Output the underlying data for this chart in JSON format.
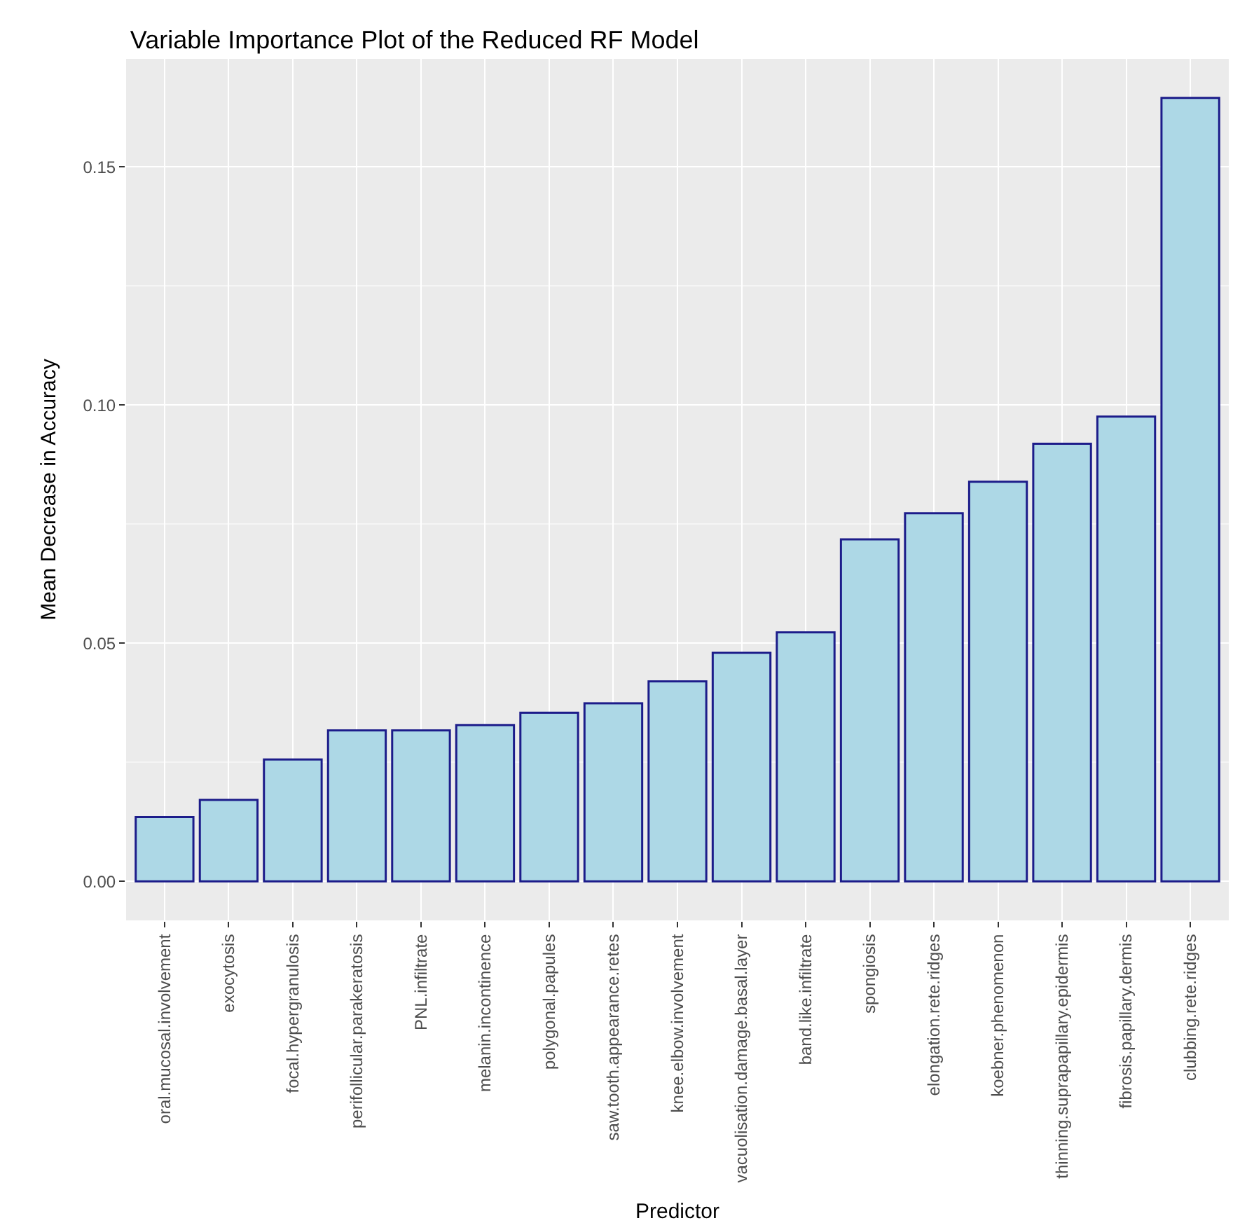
{
  "chart_data": {
    "type": "bar",
    "title": "Variable Importance Plot of the Reduced RF Model",
    "xlabel": "Predictor",
    "ylabel": "Mean Decrease in Accuracy",
    "categories": [
      "oral.mucosal.involvement",
      "exocytosis",
      "focal.hypergranulosis",
      "perifollicular.parakeratosis",
      "PNL.infiltrate",
      "melanin.incontinence",
      "polygonal.papules",
      "saw.tooth.appearance.retes",
      "knee.elbow.involvement",
      "vacuolisation.damage.basal.layer",
      "band.like.infiltrate",
      "spongiosis",
      "elongation.rete.ridges",
      "koebner.phenomenon",
      "thinning.suprapapillary.epidermis",
      "fibrosis.papillary.dermis",
      "clubbing.rete.ridges"
    ],
    "values": [
      0.0135,
      0.0171,
      0.0256,
      0.0317,
      0.0317,
      0.0328,
      0.0354,
      0.0374,
      0.042,
      0.048,
      0.0523,
      0.0718,
      0.0773,
      0.0839,
      0.0919,
      0.0976,
      0.1645
    ],
    "color": "#add8e6",
    "ylim": [
      -0.0082,
      0.1727
    ],
    "yticks": [
      {
        "value": 0,
        "label": "0.00"
      },
      0.05,
      {
        "value": 0.1,
        "label": "0.10"
      },
      0.15
    ],
    "grid": true,
    "legend": false
  }
}
